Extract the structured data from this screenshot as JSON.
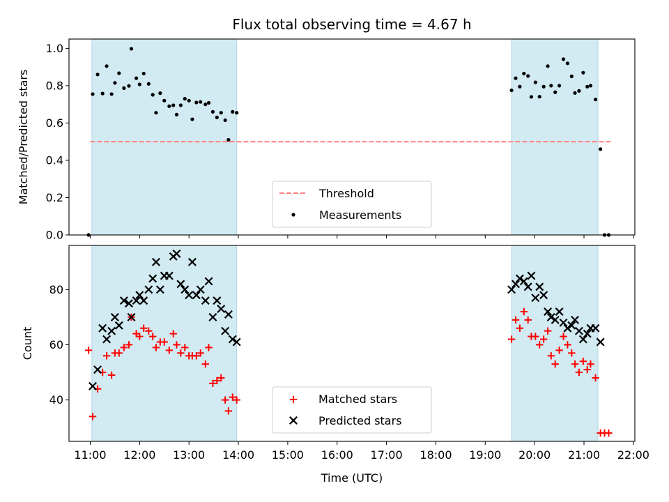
{
  "chart_data": [
    {
      "type": "scatter",
      "title": "Flux total observing time = 4.67 h",
      "ylabel": "Matched/Predicted stars",
      "xlabel": "",
      "x_range_hours": [
        10.57,
        22.03
      ],
      "ylim": [
        0.0,
        1.05
      ],
      "yticks": [
        "0.0",
        "0.2",
        "0.4",
        "0.6",
        "0.8",
        "1.0"
      ],
      "shaded_intervals": [
        [
          "11:02",
          "13:58"
        ],
        [
          "19:32",
          "21:17"
        ]
      ],
      "shade_color": "#add8e6",
      "threshold": {
        "name": "Threshold",
        "value": 0.5,
        "x_start": "11:00",
        "x_end": "21:35",
        "color": "#ff7f7f"
      },
      "legend": {
        "placement": "bottom-center",
        "entries": [
          "Threshold",
          "Measurements"
        ]
      },
      "series": [
        {
          "name": "Measurements",
          "color": "#000000",
          "points": [
            [
              "10:58",
              0.0
            ],
            [
              "11:03",
              0.755
            ],
            [
              "11:09",
              0.86
            ],
            [
              "11:15",
              0.758
            ],
            [
              "11:20",
              0.905
            ],
            [
              "11:26",
              0.755
            ],
            [
              "11:30",
              0.815
            ],
            [
              "11:35",
              0.867
            ],
            [
              "11:41",
              0.787
            ],
            [
              "11:47",
              0.799
            ],
            [
              "11:50",
              0.998
            ],
            [
              "11:56",
              0.84
            ],
            [
              "12:00",
              0.807
            ],
            [
              "12:05",
              0.865
            ],
            [
              "12:11",
              0.81
            ],
            [
              "12:16",
              0.751
            ],
            [
              "12:20",
              0.655
            ],
            [
              "12:25",
              0.76
            ],
            [
              "12:30",
              0.72
            ],
            [
              "12:36",
              0.69
            ],
            [
              "12:41",
              0.695
            ],
            [
              "12:45",
              0.645
            ],
            [
              "12:50",
              0.695
            ],
            [
              "12:55",
              0.73
            ],
            [
              "13:00",
              0.72
            ],
            [
              "13:04",
              0.62
            ],
            [
              "13:09",
              0.71
            ],
            [
              "13:14",
              0.713
            ],
            [
              "13:20",
              0.7
            ],
            [
              "13:24",
              0.708
            ],
            [
              "13:29",
              0.66
            ],
            [
              "13:34",
              0.63
            ],
            [
              "13:39",
              0.655
            ],
            [
              "13:44",
              0.615
            ],
            [
              "13:48",
              0.51
            ],
            [
              "13:53",
              0.66
            ],
            [
              "13:58",
              0.655
            ],
            [
              "19:32",
              0.775
            ],
            [
              "19:37",
              0.84
            ],
            [
              "19:42",
              0.795
            ],
            [
              "19:47",
              0.865
            ],
            [
              "19:52",
              0.852
            ],
            [
              "19:56",
              0.74
            ],
            [
              "20:01",
              0.818
            ],
            [
              "20:06",
              0.741
            ],
            [
              "20:11",
              0.795
            ],
            [
              "20:16",
              0.905
            ],
            [
              "20:20",
              0.8
            ],
            [
              "20:25",
              0.765
            ],
            [
              "20:30",
              0.8
            ],
            [
              "20:35",
              0.942
            ],
            [
              "20:40",
              0.92
            ],
            [
              "20:45",
              0.85
            ],
            [
              "20:49",
              0.761
            ],
            [
              "20:54",
              0.772
            ],
            [
              "20:59",
              0.87
            ],
            [
              "21:04",
              0.795
            ],
            [
              "21:08",
              0.8
            ],
            [
              "21:14",
              0.726
            ],
            [
              "21:20",
              0.46
            ],
            [
              "21:25",
              0.0
            ],
            [
              "21:30",
              0.0
            ]
          ]
        }
      ]
    },
    {
      "type": "scatter",
      "title": "",
      "ylabel": "Count",
      "xlabel": "Time (UTC)",
      "x_range_hours": [
        10.57,
        22.03
      ],
      "xticks": [
        "11:00",
        "12:00",
        "13:00",
        "14:00",
        "15:00",
        "16:00",
        "17:00",
        "18:00",
        "19:00",
        "20:00",
        "21:00",
        "22:00"
      ],
      "ylim": [
        25,
        96
      ],
      "yticks": [
        "40",
        "60",
        "80"
      ],
      "shaded_intervals": [
        [
          "11:02",
          "13:58"
        ],
        [
          "19:32",
          "21:17"
        ]
      ],
      "shade_color": "#add8e6",
      "legend": {
        "placement": "bottom-center",
        "entries": [
          "Matched stars",
          "Predicted stars"
        ]
      },
      "series": [
        {
          "name": "Matched stars",
          "marker": "plus",
          "color": "#ff0000",
          "points": [
            [
              "10:58",
              58
            ],
            [
              "11:03",
              34
            ],
            [
              "11:09",
              44
            ],
            [
              "11:15",
              50
            ],
            [
              "11:20",
              56
            ],
            [
              "11:26",
              49
            ],
            [
              "11:30",
              57
            ],
            [
              "11:35",
              57
            ],
            [
              "11:41",
              59
            ],
            [
              "11:47",
              60
            ],
            [
              "11:50",
              70
            ],
            [
              "11:56",
              64
            ],
            [
              "12:00",
              63
            ],
            [
              "12:05",
              66
            ],
            [
              "12:11",
              65
            ],
            [
              "12:16",
              63
            ],
            [
              "12:20",
              59
            ],
            [
              "12:25",
              61
            ],
            [
              "12:30",
              61
            ],
            [
              "12:36",
              58
            ],
            [
              "12:41",
              64
            ],
            [
              "12:45",
              60
            ],
            [
              "12:50",
              57
            ],
            [
              "12:55",
              59
            ],
            [
              "13:00",
              56
            ],
            [
              "13:04",
              56
            ],
            [
              "13:09",
              56
            ],
            [
              "13:14",
              57
            ],
            [
              "13:20",
              53
            ],
            [
              "13:24",
              59
            ],
            [
              "13:29",
              46
            ],
            [
              "13:34",
              47
            ],
            [
              "13:39",
              48
            ],
            [
              "13:44",
              40
            ],
            [
              "13:48",
              36
            ],
            [
              "13:53",
              41
            ],
            [
              "13:58",
              40
            ],
            [
              "19:32",
              62
            ],
            [
              "19:37",
              69
            ],
            [
              "19:42",
              66
            ],
            [
              "19:47",
              72
            ],
            [
              "19:52",
              69
            ],
            [
              "19:56",
              63
            ],
            [
              "20:01",
              63
            ],
            [
              "20:06",
              60
            ],
            [
              "20:11",
              62
            ],
            [
              "20:16",
              65
            ],
            [
              "20:20",
              56
            ],
            [
              "20:25",
              53
            ],
            [
              "20:30",
              58
            ],
            [
              "20:35",
              63
            ],
            [
              "20:40",
              60
            ],
            [
              "20:45",
              57
            ],
            [
              "20:49",
              53
            ],
            [
              "20:54",
              50
            ],
            [
              "20:59",
              54
            ],
            [
              "21:04",
              51
            ],
            [
              "21:08",
              53
            ],
            [
              "21:14",
              48
            ],
            [
              "21:20",
              28
            ],
            [
              "21:25",
              28
            ],
            [
              "21:30",
              28
            ]
          ]
        },
        {
          "name": "Predicted stars",
          "marker": "x",
          "color": "#000000",
          "points": [
            [
              "11:03",
              45
            ],
            [
              "11:09",
              51
            ],
            [
              "11:15",
              66
            ],
            [
              "11:20",
              62
            ],
            [
              "11:26",
              65
            ],
            [
              "11:30",
              70
            ],
            [
              "11:35",
              67
            ],
            [
              "11:41",
              76
            ],
            [
              "11:47",
              75
            ],
            [
              "11:50",
              70
            ],
            [
              "11:56",
              76
            ],
            [
              "12:00",
              78
            ],
            [
              "12:05",
              76
            ],
            [
              "12:11",
              80
            ],
            [
              "12:16",
              84
            ],
            [
              "12:20",
              90
            ],
            [
              "12:25",
              80
            ],
            [
              "12:30",
              85
            ],
            [
              "12:36",
              85
            ],
            [
              "12:41",
              92
            ],
            [
              "12:45",
              93
            ],
            [
              "12:50",
              82
            ],
            [
              "12:55",
              80
            ],
            [
              "13:00",
              78
            ],
            [
              "13:04",
              90
            ],
            [
              "13:09",
              78
            ],
            [
              "13:14",
              80
            ],
            [
              "13:20",
              76
            ],
            [
              "13:24",
              83
            ],
            [
              "13:29",
              70
            ],
            [
              "13:34",
              76
            ],
            [
              "13:39",
              73
            ],
            [
              "13:44",
              65
            ],
            [
              "13:48",
              71
            ],
            [
              "13:53",
              62
            ],
            [
              "13:58",
              61
            ],
            [
              "19:32",
              80
            ],
            [
              "19:37",
              82
            ],
            [
              "19:42",
              84
            ],
            [
              "19:47",
              83
            ],
            [
              "19:52",
              81
            ],
            [
              "19:56",
              85
            ],
            [
              "20:01",
              77
            ],
            [
              "20:06",
              81
            ],
            [
              "20:11",
              78
            ],
            [
              "20:16",
              72
            ],
            [
              "20:20",
              70
            ],
            [
              "20:25",
              69
            ],
            [
              "20:30",
              72
            ],
            [
              "20:35",
              68
            ],
            [
              "20:40",
              66
            ],
            [
              "20:45",
              67
            ],
            [
              "20:49",
              69
            ],
            [
              "20:54",
              65
            ],
            [
              "20:59",
              62
            ],
            [
              "21:04",
              64
            ],
            [
              "21:08",
              66
            ],
            [
              "21:14",
              66
            ],
            [
              "21:20",
              61
            ]
          ]
        }
      ]
    }
  ]
}
